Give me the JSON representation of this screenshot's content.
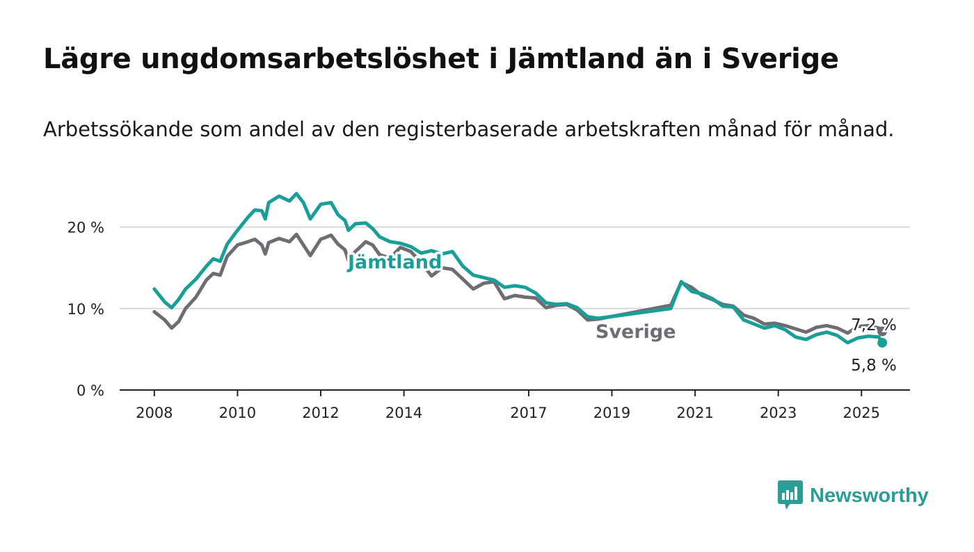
{
  "title": "Lägre ungdomsarbetslöshet i Jämtland än i Sverige",
  "subtitle": "Arbetssökande som andel av den registerbaserade arbetskraften månad för månad.",
  "brand": "Newsworthy",
  "colors": {
    "jamtland": "#1a9e98",
    "sverige": "#6f6d73",
    "grid": "#d9d9d9",
    "axis": "#222222"
  },
  "chart_data": {
    "type": "line",
    "x_ticks": [
      "2008",
      "2010",
      "2012",
      "2014",
      "2017",
      "2019",
      "2021",
      "2023",
      "2025"
    ],
    "y_ticks": [
      "0 %",
      "10 %",
      "20 %"
    ],
    "ylim": [
      0,
      25
    ],
    "xlim": [
      "2007-03",
      "2026-03"
    ],
    "grid": true,
    "series": [
      {
        "name": "Jämtland",
        "last_label": "5,8 %",
        "points": [
          [
            "2008-01",
            12.4
          ],
          [
            "2008-04",
            10.8
          ],
          [
            "2008-06",
            10.1
          ],
          [
            "2008-08",
            11.1
          ],
          [
            "2008-10",
            12.4
          ],
          [
            "2009-01",
            13.6
          ],
          [
            "2009-04",
            15.2
          ],
          [
            "2009-06",
            16.1
          ],
          [
            "2009-08",
            15.8
          ],
          [
            "2009-10",
            17.9
          ],
          [
            "2010-01",
            19.6
          ],
          [
            "2010-04",
            21.2
          ],
          [
            "2010-06",
            22.1
          ],
          [
            "2010-08",
            22.0
          ],
          [
            "2010-09",
            21.0
          ],
          [
            "2010-10",
            23.0
          ],
          [
            "2011-01",
            23.8
          ],
          [
            "2011-04",
            23.2
          ],
          [
            "2011-06",
            24.1
          ],
          [
            "2011-08",
            23.0
          ],
          [
            "2011-10",
            21.0
          ],
          [
            "2012-01",
            22.8
          ],
          [
            "2012-04",
            23.0
          ],
          [
            "2012-06",
            21.5
          ],
          [
            "2012-08",
            20.8
          ],
          [
            "2012-09",
            19.6
          ],
          [
            "2012-11",
            20.4
          ],
          [
            "2013-02",
            20.5
          ],
          [
            "2013-04",
            19.8
          ],
          [
            "2013-06",
            18.8
          ],
          [
            "2013-09",
            18.2
          ],
          [
            "2013-12",
            18.0
          ],
          [
            "2014-03",
            17.6
          ],
          [
            "2014-06",
            16.8
          ],
          [
            "2014-09",
            17.1
          ],
          [
            "2014-12",
            16.7
          ],
          [
            "2015-03",
            17.0
          ],
          [
            "2015-06",
            15.2
          ],
          [
            "2015-09",
            14.1
          ],
          [
            "2015-12",
            13.8
          ],
          [
            "2016-03",
            13.5
          ],
          [
            "2016-06",
            12.6
          ],
          [
            "2016-09",
            12.8
          ],
          [
            "2016-12",
            12.6
          ],
          [
            "2017-03",
            11.9
          ],
          [
            "2017-06",
            10.7
          ],
          [
            "2017-09",
            10.5
          ],
          [
            "2017-12",
            10.6
          ],
          [
            "2018-03",
            10.1
          ],
          [
            "2018-06",
            9.0
          ],
          [
            "2018-09",
            8.8
          ],
          [
            "2020-06",
            10.0
          ],
          [
            "2020-09",
            13.3
          ],
          [
            "2020-12",
            12.1
          ],
          [
            "2021-03",
            11.8
          ],
          [
            "2021-06",
            11.2
          ],
          [
            "2021-09",
            10.3
          ],
          [
            "2021-12",
            10.2
          ],
          [
            "2022-03",
            8.6
          ],
          [
            "2022-06",
            8.1
          ],
          [
            "2022-09",
            7.6
          ],
          [
            "2022-12",
            7.9
          ],
          [
            "2023-03",
            7.4
          ],
          [
            "2023-06",
            6.5
          ],
          [
            "2023-09",
            6.2
          ],
          [
            "2023-12",
            6.8
          ],
          [
            "2024-03",
            7.1
          ],
          [
            "2024-06",
            6.7
          ],
          [
            "2024-09",
            5.8
          ],
          [
            "2024-12",
            6.4
          ],
          [
            "2025-03",
            6.6
          ],
          [
            "2025-06",
            6.5
          ],
          [
            "2025-07",
            5.8
          ]
        ]
      },
      {
        "name": "Sverige",
        "last_label": "7,2 %",
        "points": [
          [
            "2008-01",
            9.6
          ],
          [
            "2008-04",
            8.6
          ],
          [
            "2008-06",
            7.6
          ],
          [
            "2008-08",
            8.4
          ],
          [
            "2008-10",
            10.0
          ],
          [
            "2009-01",
            11.4
          ],
          [
            "2009-04",
            13.5
          ],
          [
            "2009-06",
            14.3
          ],
          [
            "2009-08",
            14.1
          ],
          [
            "2009-10",
            16.4
          ],
          [
            "2010-01",
            17.8
          ],
          [
            "2010-04",
            18.2
          ],
          [
            "2010-06",
            18.5
          ],
          [
            "2010-08",
            17.8
          ],
          [
            "2010-09",
            16.7
          ],
          [
            "2010-10",
            18.1
          ],
          [
            "2011-01",
            18.6
          ],
          [
            "2011-04",
            18.2
          ],
          [
            "2011-06",
            19.1
          ],
          [
            "2011-08",
            17.8
          ],
          [
            "2011-10",
            16.5
          ],
          [
            "2012-01",
            18.5
          ],
          [
            "2012-04",
            19.0
          ],
          [
            "2012-06",
            17.9
          ],
          [
            "2012-08",
            17.2
          ],
          [
            "2012-09",
            15.9
          ],
          [
            "2012-11",
            17.0
          ],
          [
            "2013-02",
            18.2
          ],
          [
            "2013-04",
            17.8
          ],
          [
            "2013-06",
            16.6
          ],
          [
            "2013-09",
            16.2
          ],
          [
            "2013-12",
            17.5
          ],
          [
            "2014-03",
            17.0
          ],
          [
            "2014-06",
            15.6
          ],
          [
            "2014-09",
            14.0
          ],
          [
            "2014-12",
            15.0
          ],
          [
            "2015-03",
            14.8
          ],
          [
            "2015-06",
            13.6
          ],
          [
            "2015-09",
            12.4
          ],
          [
            "2015-12",
            13.1
          ],
          [
            "2016-03",
            13.3
          ],
          [
            "2016-06",
            11.2
          ],
          [
            "2016-09",
            11.6
          ],
          [
            "2016-12",
            11.4
          ],
          [
            "2017-03",
            11.3
          ],
          [
            "2017-06",
            10.1
          ],
          [
            "2017-09",
            10.4
          ],
          [
            "2017-12",
            10.5
          ],
          [
            "2018-03",
            9.8
          ],
          [
            "2018-06",
            8.6
          ],
          [
            "2018-09",
            8.7
          ],
          [
            "2020-06",
            10.4
          ],
          [
            "2020-09",
            13.2
          ],
          [
            "2020-12",
            12.6
          ],
          [
            "2021-03",
            11.6
          ],
          [
            "2021-06",
            11.1
          ],
          [
            "2021-09",
            10.5
          ],
          [
            "2021-12",
            10.3
          ],
          [
            "2022-03",
            9.2
          ],
          [
            "2022-06",
            8.8
          ],
          [
            "2022-09",
            8.1
          ],
          [
            "2022-12",
            8.2
          ],
          [
            "2023-03",
            7.9
          ],
          [
            "2023-06",
            7.5
          ],
          [
            "2023-09",
            7.1
          ],
          [
            "2023-12",
            7.7
          ],
          [
            "2024-03",
            7.9
          ],
          [
            "2024-06",
            7.6
          ],
          [
            "2024-09",
            7.0
          ],
          [
            "2024-12",
            7.8
          ],
          [
            "2025-03",
            7.9
          ],
          [
            "2025-06",
            7.6
          ],
          [
            "2025-07",
            7.2
          ]
        ]
      }
    ]
  }
}
